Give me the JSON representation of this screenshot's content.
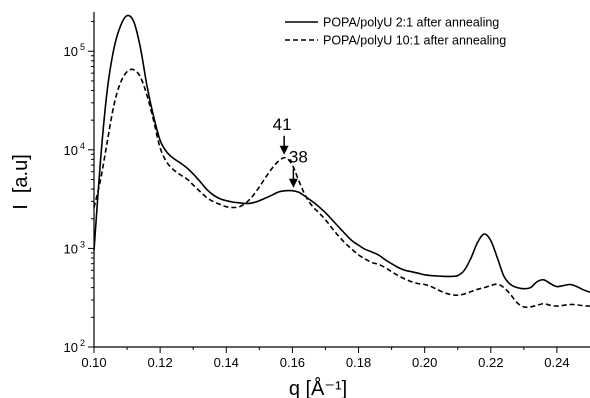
{
  "chart_data": {
    "type": "line",
    "title": "",
    "xlabel": "q [Å⁻¹]",
    "ylabel": "I  [a.u]",
    "xlim": [
      0.1,
      0.25
    ],
    "ylim": [
      100,
      250000
    ],
    "yscale": "log",
    "grid": false,
    "legend_position": "top-right",
    "x_ticks": [
      "0.10",
      "0.12",
      "0.14",
      "0.16",
      "0.18",
      "0.20",
      "0.22",
      "0.24"
    ],
    "y_ticks": [
      {
        "value": 100,
        "label_base": "10",
        "label_exp": "2"
      },
      {
        "value": 1000,
        "label_base": "10",
        "label_exp": "3"
      },
      {
        "value": 10000,
        "label_base": "10",
        "label_exp": "4"
      },
      {
        "value": 100000,
        "label_base": "10",
        "label_exp": "5"
      }
    ],
    "series": [
      {
        "name": "POPA/polyU 2:1 after annealing",
        "style": "solid",
        "color": "#000000",
        "points": [
          [
            0.1,
            950
          ],
          [
            0.102,
            8000
          ],
          [
            0.104,
            40000
          ],
          [
            0.106,
            105000
          ],
          [
            0.108,
            180000
          ],
          [
            0.11,
            230000
          ],
          [
            0.112,
            200000
          ],
          [
            0.114,
            110000
          ],
          [
            0.116,
            45000
          ],
          [
            0.118,
            22000
          ],
          [
            0.12,
            12500
          ],
          [
            0.122,
            9500
          ],
          [
            0.124,
            8200
          ],
          [
            0.126,
            7400
          ],
          [
            0.128,
            6600
          ],
          [
            0.13,
            5700
          ],
          [
            0.132,
            4800
          ],
          [
            0.134,
            4000
          ],
          [
            0.136,
            3500
          ],
          [
            0.138,
            3200
          ],
          [
            0.14,
            3050
          ],
          [
            0.142,
            2950
          ],
          [
            0.144,
            2900
          ],
          [
            0.146,
            2850
          ],
          [
            0.148,
            2900
          ],
          [
            0.15,
            3050
          ],
          [
            0.152,
            3250
          ],
          [
            0.154,
            3500
          ],
          [
            0.156,
            3750
          ],
          [
            0.158,
            3850
          ],
          [
            0.16,
            3850
          ],
          [
            0.162,
            3700
          ],
          [
            0.164,
            3350
          ],
          [
            0.166,
            3000
          ],
          [
            0.168,
            2650
          ],
          [
            0.17,
            2300
          ],
          [
            0.172,
            1950
          ],
          [
            0.174,
            1650
          ],
          [
            0.176,
            1400
          ],
          [
            0.178,
            1200
          ],
          [
            0.18,
            1080
          ],
          [
            0.182,
            980
          ],
          [
            0.184,
            920
          ],
          [
            0.186,
            860
          ],
          [
            0.188,
            770
          ],
          [
            0.19,
            700
          ],
          [
            0.192,
            640
          ],
          [
            0.194,
            600
          ],
          [
            0.196,
            580
          ],
          [
            0.198,
            560
          ],
          [
            0.2,
            540
          ],
          [
            0.202,
            530
          ],
          [
            0.204,
            525
          ],
          [
            0.206,
            520
          ],
          [
            0.208,
            520
          ],
          [
            0.21,
            530
          ],
          [
            0.212,
            600
          ],
          [
            0.214,
            800
          ],
          [
            0.216,
            1150
          ],
          [
            0.218,
            1400
          ],
          [
            0.22,
            1200
          ],
          [
            0.222,
            800
          ],
          [
            0.224,
            520
          ],
          [
            0.226,
            430
          ],
          [
            0.228,
            400
          ],
          [
            0.23,
            390
          ],
          [
            0.232,
            400
          ],
          [
            0.234,
            460
          ],
          [
            0.236,
            480
          ],
          [
            0.238,
            440
          ],
          [
            0.24,
            410
          ],
          [
            0.242,
            420
          ],
          [
            0.244,
            430
          ],
          [
            0.246,
            410
          ],
          [
            0.248,
            380
          ],
          [
            0.25,
            360
          ]
        ]
      },
      {
        "name": "POPA/polyU 10:1 after annealing",
        "style": "dashed",
        "color": "#000000",
        "points": [
          [
            0.1,
            2600
          ],
          [
            0.102,
            5000
          ],
          [
            0.104,
            12000
          ],
          [
            0.106,
            28000
          ],
          [
            0.108,
            48000
          ],
          [
            0.11,
            62000
          ],
          [
            0.112,
            65000
          ],
          [
            0.114,
            55000
          ],
          [
            0.116,
            36000
          ],
          [
            0.118,
            20000
          ],
          [
            0.12,
            10500
          ],
          [
            0.122,
            7500
          ],
          [
            0.124,
            6300
          ],
          [
            0.126,
            5600
          ],
          [
            0.128,
            5100
          ],
          [
            0.13,
            4400
          ],
          [
            0.132,
            3800
          ],
          [
            0.134,
            3300
          ],
          [
            0.136,
            3000
          ],
          [
            0.138,
            2800
          ],
          [
            0.14,
            2650
          ],
          [
            0.142,
            2600
          ],
          [
            0.144,
            2650
          ],
          [
            0.146,
            2900
          ],
          [
            0.148,
            3400
          ],
          [
            0.15,
            4200
          ],
          [
            0.152,
            5300
          ],
          [
            0.154,
            6600
          ],
          [
            0.156,
            7800
          ],
          [
            0.158,
            8300
          ],
          [
            0.16,
            7000
          ],
          [
            0.162,
            4800
          ],
          [
            0.164,
            3400
          ],
          [
            0.166,
            2700
          ],
          [
            0.168,
            2300
          ],
          [
            0.17,
            1950
          ],
          [
            0.172,
            1600
          ],
          [
            0.174,
            1330
          ],
          [
            0.176,
            1130
          ],
          [
            0.178,
            980
          ],
          [
            0.18,
            860
          ],
          [
            0.182,
            780
          ],
          [
            0.184,
            720
          ],
          [
            0.186,
            690
          ],
          [
            0.188,
            640
          ],
          [
            0.19,
            580
          ],
          [
            0.192,
            530
          ],
          [
            0.194,
            490
          ],
          [
            0.196,
            460
          ],
          [
            0.198,
            440
          ],
          [
            0.2,
            430
          ],
          [
            0.202,
            410
          ],
          [
            0.204,
            380
          ],
          [
            0.206,
            355
          ],
          [
            0.208,
            340
          ],
          [
            0.21,
            335
          ],
          [
            0.212,
            345
          ],
          [
            0.214,
            365
          ],
          [
            0.216,
            385
          ],
          [
            0.218,
            400
          ],
          [
            0.22,
            420
          ],
          [
            0.222,
            435
          ],
          [
            0.224,
            400
          ],
          [
            0.226,
            340
          ],
          [
            0.228,
            280
          ],
          [
            0.23,
            255
          ],
          [
            0.232,
            255
          ],
          [
            0.234,
            265
          ],
          [
            0.236,
            275
          ],
          [
            0.238,
            265
          ],
          [
            0.24,
            260
          ],
          [
            0.242,
            265
          ],
          [
            0.244,
            270
          ],
          [
            0.246,
            268
          ],
          [
            0.248,
            262
          ],
          [
            0.25,
            260
          ]
        ]
      }
    ],
    "annotations": [
      {
        "text": "41",
        "x": 0.1575,
        "y": 8300
      },
      {
        "text": "38",
        "x": 0.1603,
        "y": 3850
      }
    ]
  }
}
